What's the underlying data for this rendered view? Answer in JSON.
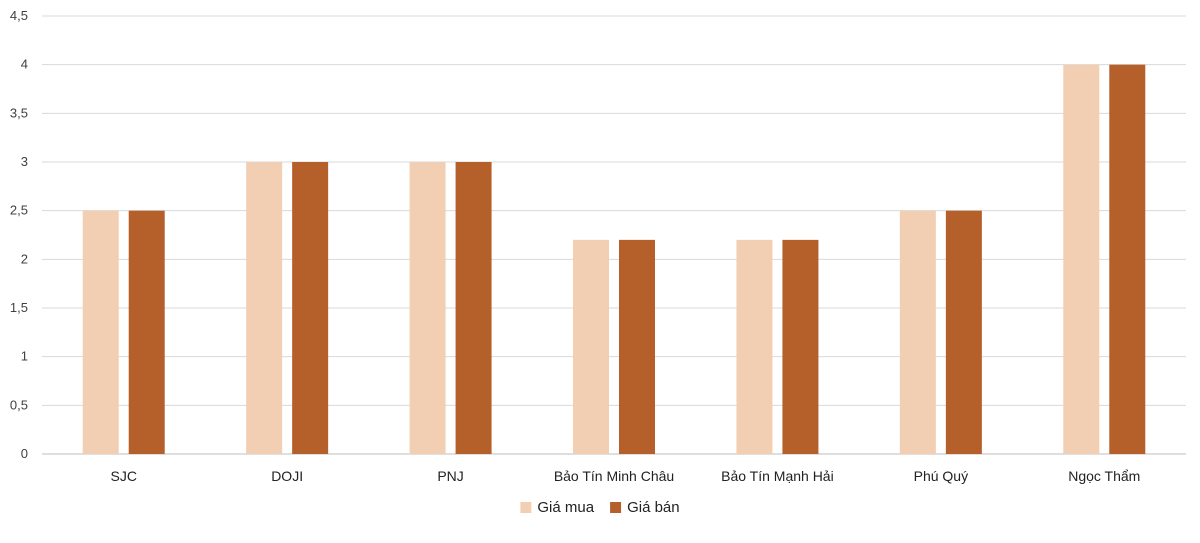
{
  "chart_data": {
    "type": "bar",
    "categories": [
      "SJC",
      "DOJI",
      "PNJ",
      "Bảo Tín Minh Châu",
      "Bảo Tín Mạnh Hải",
      "Phú Quý",
      "Ngọc Thẩm"
    ],
    "series": [
      {
        "name": "Giá mua",
        "color": "#f2cfb3",
        "values": [
          2.5,
          3,
          3,
          2.2,
          2.2,
          2.5,
          4
        ]
      },
      {
        "name": "Giá bán",
        "color": "#b5602b",
        "values": [
          2.5,
          3,
          3,
          2.2,
          2.2,
          2.5,
          4
        ]
      }
    ],
    "ylim": [
      0,
      4.5
    ],
    "yticks": [
      "0",
      "0,5",
      "1",
      "1,5",
      "2",
      "2,5",
      "3",
      "3,5",
      "4",
      "4,5"
    ],
    "title": "",
    "xlabel": "",
    "ylabel": "",
    "grid": true,
    "legend_position": "bottom-center"
  }
}
